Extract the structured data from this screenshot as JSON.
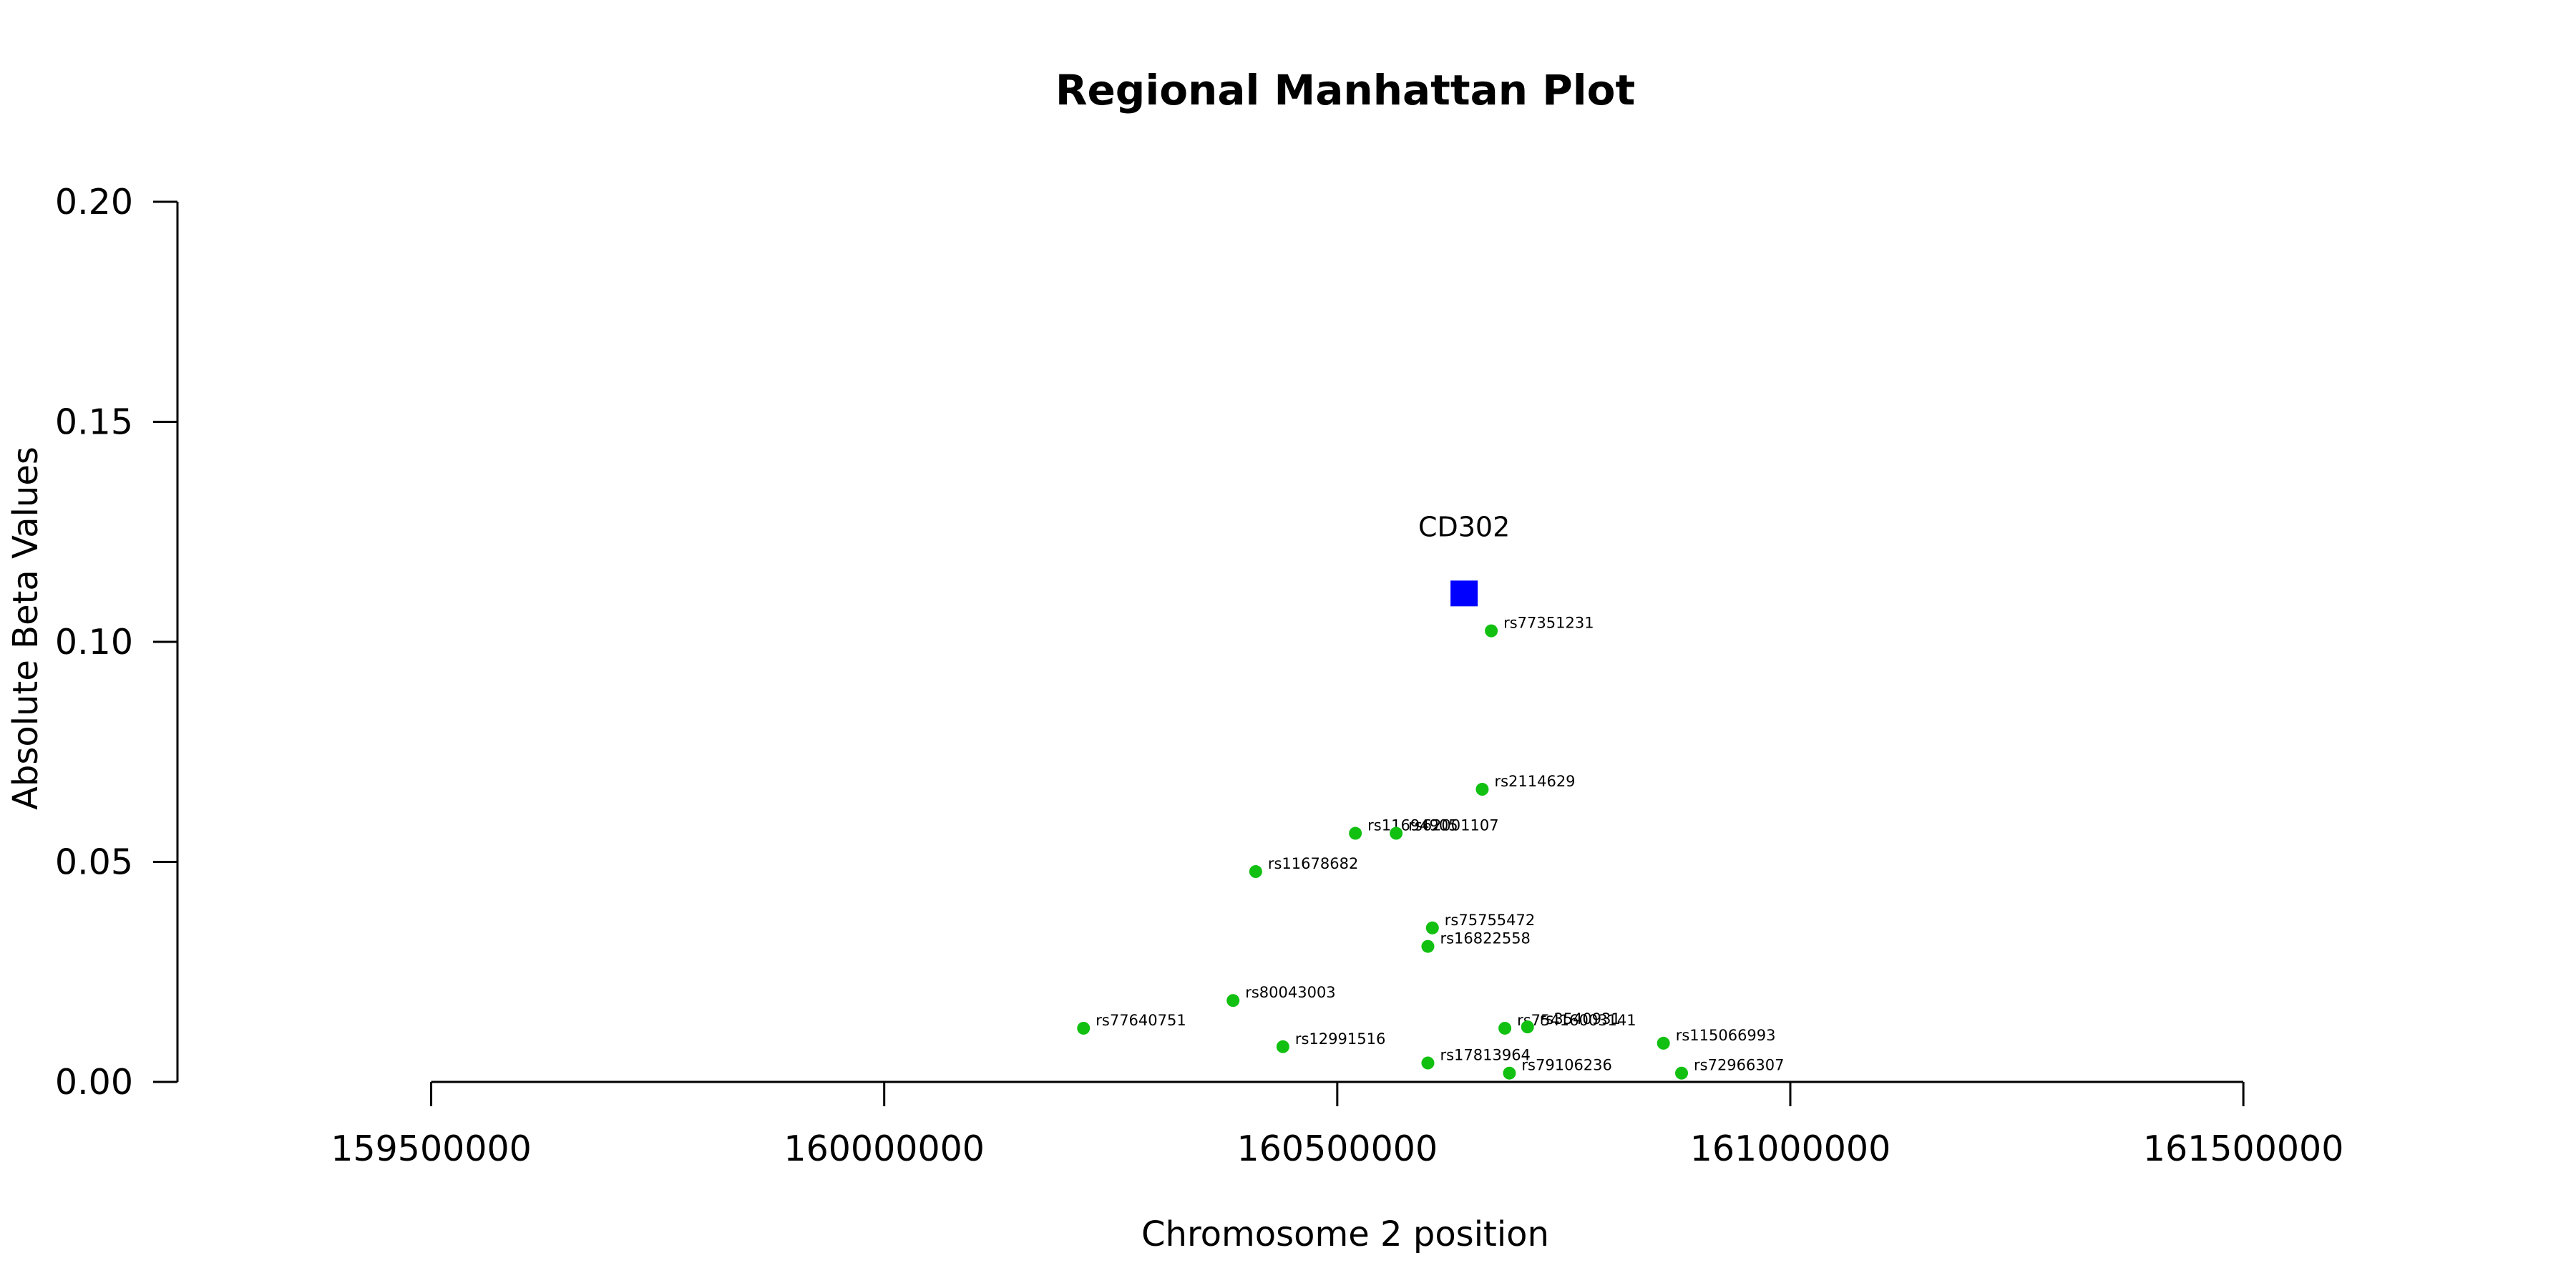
{
  "chart_data": {
    "type": "scatter",
    "title": "Regional Manhattan Plot",
    "xlabel": "Chromosome 2 position",
    "ylabel": "Absolute Beta Values",
    "xlim": [
      159220000,
      161800000
    ],
    "ylim": [
      0,
      0.2
    ],
    "x_ticks": [
      159500000,
      160000000,
      160500000,
      161000000,
      161500000
    ],
    "x_tick_labels": [
      "159500000",
      "160000000",
      "160500000",
      "161000000",
      "161500000"
    ],
    "y_ticks": [
      0,
      0.05,
      0.1,
      0.15,
      0.2
    ],
    "y_tick_labels": [
      "0.00",
      "0.05",
      "0.10",
      "0.15",
      "0.20"
    ],
    "grid": false,
    "gene": {
      "name": "CD302",
      "x": 160640000,
      "y": 0.111,
      "color": "#0000ff",
      "marker": "square"
    },
    "snp_color": "#11c011",
    "points": [
      {
        "label": "rs77351231",
        "x": 160670000,
        "y": 0.1025
      },
      {
        "label": "rs2114629",
        "x": 160660000,
        "y": 0.0665
      },
      {
        "label": "rs11694905",
        "x": 160520000,
        "y": 0.0565
      },
      {
        "label": "rs62001107",
        "x": 160565000,
        "y": 0.0565
      },
      {
        "label": "rs11678682",
        "x": 160410000,
        "y": 0.0478
      },
      {
        "label": "rs75755472",
        "x": 160605000,
        "y": 0.035
      },
      {
        "label": "rs16822558",
        "x": 160600000,
        "y": 0.0308
      },
      {
        "label": "rs80043003",
        "x": 160385000,
        "y": 0.0185
      },
      {
        "label": "rs77640751",
        "x": 160220000,
        "y": 0.0122
      },
      {
        "label": "rs75416003141",
        "x": 160685000,
        "y": 0.0122
      },
      {
        "label": "rs3540931",
        "x": 160710000,
        "y": 0.0125
      },
      {
        "label": "rs115066993",
        "x": 160860000,
        "y": 0.0088
      },
      {
        "label": "rs12991516",
        "x": 160440000,
        "y": 0.008
      },
      {
        "label": "rs17813964",
        "x": 160600000,
        "y": 0.0043
      },
      {
        "label": "rs79106236",
        "x": 160690000,
        "y": 0.002
      },
      {
        "label": "rs72966307",
        "x": 160880000,
        "y": 0.002
      }
    ]
  }
}
